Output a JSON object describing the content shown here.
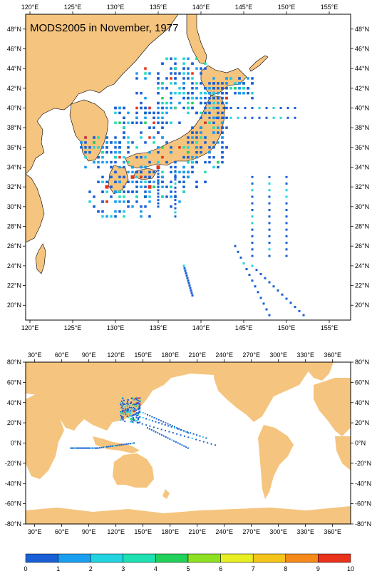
{
  "map_top": {
    "title": "MODS2005 in November, 1977",
    "lon_range": [
      119.5,
      157.5
    ],
    "lat_range": [
      18.5,
      49.5
    ],
    "x_ticks": [
      "120°E",
      "125°E",
      "130°E",
      "135°E",
      "140°E",
      "145°E",
      "150°E",
      "155°E"
    ],
    "x_tick_values": [
      120,
      125,
      130,
      135,
      140,
      145,
      150,
      155
    ],
    "y_ticks": [
      "20°N",
      "22°N",
      "24°N",
      "26°N",
      "28°N",
      "30°N",
      "32°N",
      "34°N",
      "36°N",
      "38°N",
      "40°N",
      "42°N",
      "44°N",
      "46°N",
      "48°N"
    ],
    "y_tick_values": [
      20,
      22,
      24,
      26,
      28,
      30,
      32,
      34,
      36,
      38,
      40,
      42,
      44,
      46,
      48
    ],
    "land_color": "#f5c47e",
    "ocean_color": "#ffffff"
  },
  "map_bottom": {
    "lon_range": [
      20,
      380
    ],
    "lat_range": [
      -80,
      80
    ],
    "x_ticks": [
      "30°E",
      "60°E",
      "90°E",
      "120°E",
      "150°E",
      "180°E",
      "210°E",
      "240°E",
      "270°E",
      "300°E",
      "330°E",
      "360°E"
    ],
    "x_tick_values": [
      30,
      60,
      90,
      120,
      150,
      180,
      210,
      240,
      270,
      300,
      330,
      360
    ],
    "y_ticks": [
      "80°N",
      "60°N",
      "40°N",
      "20°N",
      "0°N",
      "-20°N",
      "-40°N",
      "-60°N",
      "-80°N"
    ],
    "y_tick_values": [
      80,
      60,
      40,
      20,
      0,
      -20,
      -40,
      -60,
      -80
    ],
    "land_color": "#f5c47e"
  },
  "colorbar": {
    "labels": [
      "0",
      "1",
      "2",
      "3",
      "4",
      "5",
      "6",
      "7",
      "8",
      "9",
      "10"
    ],
    "colors": [
      "#1a5fd6",
      "#1a9ef0",
      "#22d3e0",
      "#1ee0b0",
      "#22d05a",
      "#8ee022",
      "#e8ee22",
      "#f5c41a",
      "#f58a1a",
      "#e8321a"
    ]
  }
}
